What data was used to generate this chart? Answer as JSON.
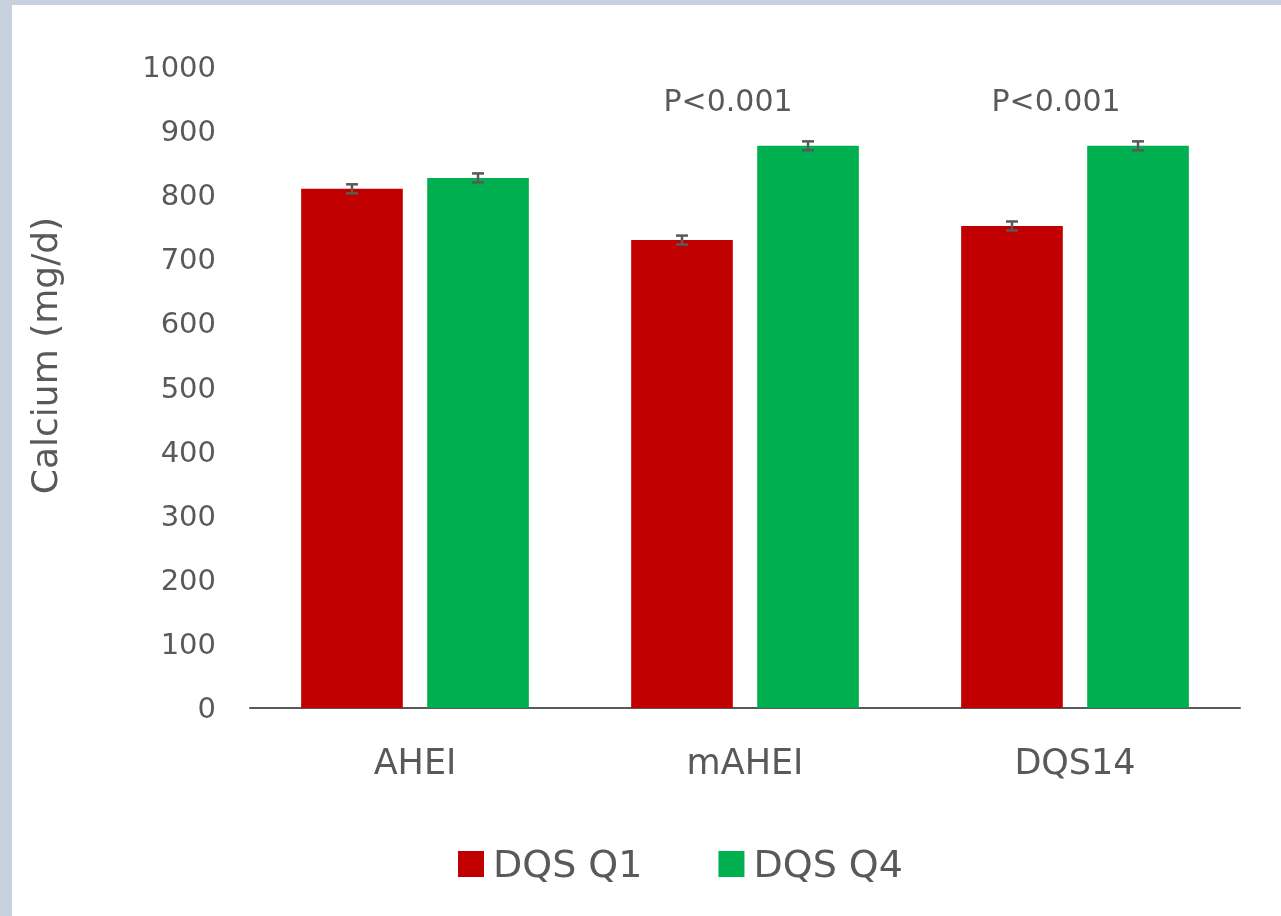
{
  "chart_data": {
    "type": "bar",
    "ylabel": "Calcium (mg/d)",
    "categories": [
      "AHEI",
      "mAHEI",
      "DQS14"
    ],
    "series": [
      {
        "name": "DQS Q1",
        "color": "#c00000",
        "values": [
          810,
          730,
          752
        ],
        "errors": [
          7,
          7,
          7
        ]
      },
      {
        "name": "DQS Q4",
        "color": "#00b050",
        "values": [
          827,
          877,
          877
        ],
        "errors": [
          7,
          7,
          7
        ]
      }
    ],
    "ylim": [
      0,
      1000
    ],
    "yticks": [
      0,
      100,
      200,
      300,
      400,
      500,
      600,
      700,
      800,
      900,
      1000
    ],
    "legend": "bottom",
    "annotations": [
      "P<0.001",
      "P<0.001"
    ]
  }
}
